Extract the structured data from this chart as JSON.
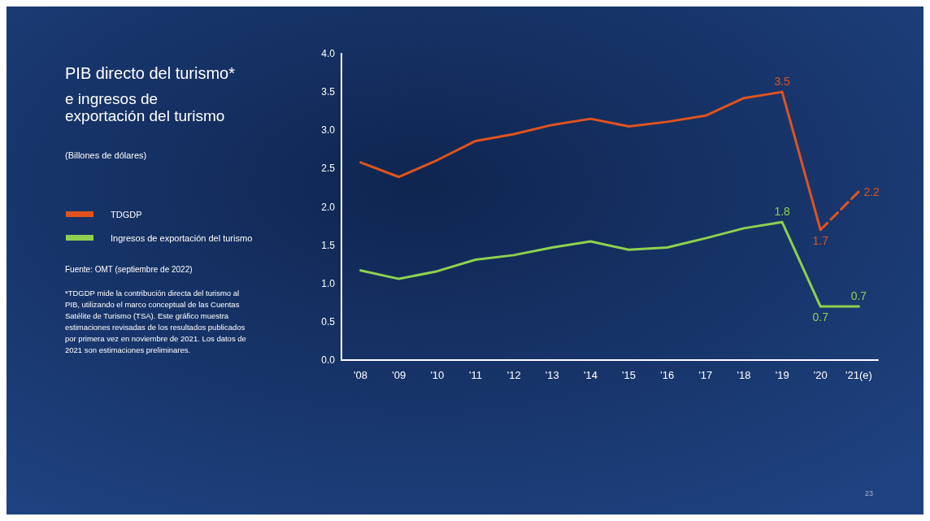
{
  "chart_data": {
    "type": "line",
    "title": "PIB directo del turismo*",
    "subtitle": "e ingresos de\nexportación del turismo",
    "categories": [
      "'08",
      "'09",
      "'10",
      "'11",
      "'12",
      "'13",
      "'14",
      "'15",
      "'16",
      "'17",
      "'18",
      "'19",
      "'20",
      "'21(e)"
    ],
    "series": [
      {
        "name": "TDGDP",
        "color": "#e0531f",
        "values": [
          2.58,
          2.39,
          2.61,
          2.86,
          2.95,
          3.07,
          3.15,
          3.05,
          3.11,
          3.19,
          3.42,
          3.5,
          1.7,
          null
        ],
        "value_labels": [
          null,
          null,
          null,
          null,
          null,
          null,
          null,
          null,
          null,
          null,
          null,
          "3.5",
          "1.7",
          null
        ]
      },
      {
        "color": "#e0531f",
        "line_style": "dashed",
        "values": [
          null,
          null,
          null,
          null,
          null,
          null,
          null,
          null,
          null,
          null,
          null,
          null,
          1.7,
          2.2
        ],
        "value_labels": [
          null,
          null,
          null,
          null,
          null,
          null,
          null,
          null,
          null,
          null,
          null,
          null,
          null,
          "2.2"
        ]
      },
      {
        "name": "Ingresos de exportación del turismo",
        "color": "#8fd14f",
        "values": [
          1.17,
          1.06,
          1.16,
          1.31,
          1.37,
          1.47,
          1.55,
          1.44,
          1.47,
          1.59,
          1.72,
          1.8,
          0.7,
          0.7
        ],
        "value_labels": [
          null,
          null,
          null,
          null,
          null,
          null,
          null,
          null,
          null,
          null,
          null,
          "1.8",
          "0.7",
          "0.7"
        ]
      }
    ],
    "ylim": [
      0,
      4
    ],
    "yticks": [
      {
        "value": 0,
        "label": "0.0"
      },
      0.5,
      {
        "value": 1,
        "label": "1.0"
      },
      1.5,
      {
        "value": 2,
        "label": "2.0"
      },
      2.5,
      {
        "value": 3,
        "label": "3.0"
      },
      3.5,
      {
        "value": 4,
        "label": "4.0"
      }
    ],
    "grid": false,
    "legend": "left",
    "marker": "none",
    "line_style": "solid",
    "annotations": [
      "(Billones de dólares)",
      "Fuente: OMT (septiembre de 2022)",
      "*TDGDP mide la contribución directa del turismo al PIB, utilizando el marco conceptual de las Cuentas Satélite de Turismo (TSA). Este gráfico muestra estimaciones revisadas de los resultados publicados por primera vez en noviembre de 2021. Los datos de 2021 son estimaciones preliminares.",
      "23"
    ]
  }
}
